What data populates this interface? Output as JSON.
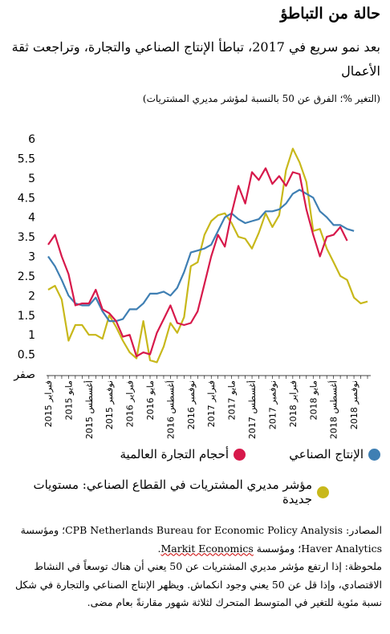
{
  "header": {
    "title": "حالة من التباطؤ",
    "subtitle": "بعد نمو سريع في 2017، تباطأ الإنتاج الصناعي والتجارة، وتراجعت ثقة الأعمال",
    "units": "(التغير %؛ الفرق عن 50 بالنسبة لمؤشر مديري المشتريات)"
  },
  "legend": {
    "trade": "أحجام التجارة العالمية",
    "ip": "الإنتاج الصناعي",
    "pmi": "مؤشر مديري المشتريات في القطاع الصناعي: مستويات جديدة"
  },
  "notes": {
    "sources_prefix": "المصادر: ",
    "sources_cpb": "CPB Netherlands Bureau for Economic Policy Analysis",
    "sources_mid": "؛ ومؤسسة ",
    "sources_haver": "Haver Analytics",
    "sources_mid2": "؛ ومؤسسة ",
    "sources_markit": "Markit Economics",
    "sources_end": ".",
    "note": "ملحوظة: إذا ارتفع مؤشر مديري المشتريات عن 50 يعني أن هناك توسعاً في النشاط الاقتصادي، وإذا قل عن 50 يعني وجود انكماش. ويظهر الإنتاج الصناعي والتجارة في شكل نسبة مئوية للتغير في المتوسط المتحرك لثلاثة شهور مقارنةً بعام مضى."
  },
  "chart_data": {
    "type": "line",
    "title": "حالة من التباطؤ",
    "ylim": [
      0,
      6
    ],
    "y_ticks": [
      "صفر",
      "0.5",
      "1",
      "1.5",
      "2",
      "2.5",
      "3",
      "3.5",
      "4",
      "4.5",
      "5",
      "5.5",
      "6"
    ],
    "x_tick_labels": [
      {
        "month": "فبراير",
        "year": "2015"
      },
      {
        "month": "مايو",
        "year": "2015"
      },
      {
        "month": "أغسطس",
        "year": "2015"
      },
      {
        "month": "نوفمبر",
        "year": "2015"
      },
      {
        "month": "فبراير",
        "year": "2016"
      },
      {
        "month": "مايو",
        "year": "2016"
      },
      {
        "month": "أغسطس",
        "year": "2016"
      },
      {
        "month": "نوفمبر",
        "year": "2016"
      },
      {
        "month": "فبراير",
        "year": "2017"
      },
      {
        "month": "مايو",
        "year": "2017"
      },
      {
        "month": "أغسطس",
        "year": "2017"
      },
      {
        "month": "نوفمبر",
        "year": "2017"
      },
      {
        "month": "فبراير",
        "year": "2018"
      },
      {
        "month": "مايو",
        "year": "2018"
      },
      {
        "month": "أغسطس",
        "year": "2018"
      },
      {
        "month": "نوفمبر",
        "year": "2018"
      }
    ],
    "x_start": "2015-02",
    "series": [
      {
        "name": "أحجام التجارة العالمية",
        "color": "#d7194b",
        "values": [
          3.3,
          3.55,
          3.0,
          2.55,
          1.75,
          1.8,
          1.8,
          2.15,
          1.65,
          1.55,
          1.35,
          0.95,
          1.0,
          0.45,
          0.55,
          0.5,
          1.05,
          1.4,
          1.75,
          1.3,
          1.25,
          1.3,
          1.6,
          2.3,
          3.0,
          3.55,
          3.25,
          4.1,
          4.8,
          4.35,
          5.15,
          4.95,
          5.25,
          4.85,
          5.05,
          4.8,
          5.15,
          5.1,
          4.2,
          3.55,
          3.0,
          3.5,
          3.55,
          3.75,
          3.4
        ]
      },
      {
        "name": "الإنتاج الصناعي",
        "color": "#3f7fb3",
        "values": [
          3.0,
          2.75,
          2.4,
          2.0,
          1.8,
          1.75,
          1.75,
          1.95,
          1.6,
          1.35,
          1.35,
          1.4,
          1.65,
          1.65,
          1.8,
          2.05,
          2.05,
          2.1,
          2.0,
          2.2,
          2.6,
          3.1,
          3.15,
          3.2,
          3.3,
          3.65,
          4.0,
          4.1,
          3.95,
          3.85,
          3.9,
          3.95,
          4.15,
          4.15,
          4.2,
          4.35,
          4.6,
          4.7,
          4.6,
          4.5,
          4.15,
          4.0,
          3.8,
          3.8,
          3.7,
          3.65
        ]
      },
      {
        "name": "مؤشر مديري المشتريات في القطاع الصناعي: مستويات جديدة",
        "color": "#c8b81b",
        "values": [
          2.15,
          2.25,
          1.9,
          0.85,
          1.25,
          1.25,
          1.0,
          1.0,
          0.9,
          1.5,
          1.2,
          0.85,
          0.55,
          0.4,
          1.35,
          0.35,
          0.3,
          0.7,
          1.3,
          1.05,
          1.45,
          2.75,
          2.85,
          3.55,
          3.9,
          4.05,
          4.1,
          3.85,
          3.5,
          3.45,
          3.2,
          3.6,
          4.1,
          3.75,
          4.05,
          5.2,
          5.75,
          5.4,
          4.9,
          3.65,
          3.7,
          3.2,
          2.85,
          2.5,
          2.4,
          1.95,
          1.8,
          1.85
        ]
      }
    ]
  }
}
